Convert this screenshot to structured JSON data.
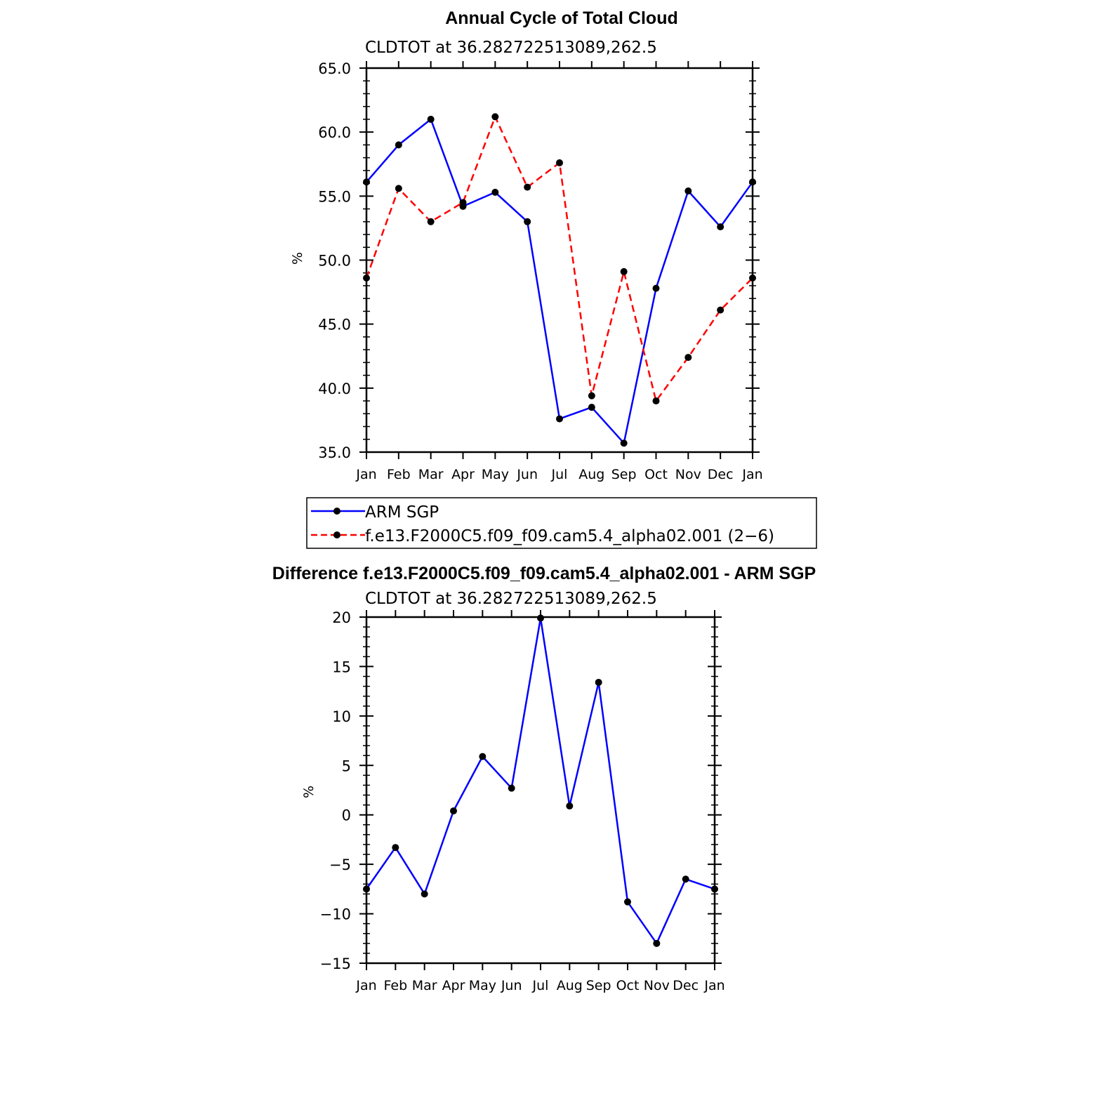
{
  "chart_data": [
    {
      "type": "line",
      "title": "Annual Cycle of Total Cloud",
      "subtitle": "CLDTOT at 36.282722513089,262.5",
      "xlabel": "",
      "ylabel": "%",
      "categories": [
        "Jan",
        "Feb",
        "Mar",
        "Apr",
        "May",
        "Jun",
        "Jul",
        "Aug",
        "Sep",
        "Oct",
        "Nov",
        "Dec",
        "Jan"
      ],
      "ylim": [
        35.0,
        65.0
      ],
      "yticks": [
        "35.0",
        "40.0",
        "45.0",
        "50.0",
        "55.0",
        "60.0",
        "65.0"
      ],
      "series": [
        {
          "name": "ARM SGP",
          "color": "#0000ff",
          "dash": "solid",
          "values": [
            56.1,
            59.0,
            61.0,
            54.2,
            55.3,
            53.0,
            37.6,
            38.5,
            35.7,
            47.8,
            55.4,
            52.6,
            56.1
          ]
        },
        {
          "name": "f.e13.F2000C5.f09_f09.cam5.4_alpha02.001 (2−6)",
          "color": "#ff0000",
          "dash": "dashed",
          "values": [
            48.6,
            55.6,
            53.0,
            54.5,
            61.2,
            55.7,
            57.6,
            39.4,
            49.1,
            39.0,
            42.4,
            46.1,
            48.6
          ]
        }
      ],
      "legend": "below"
    },
    {
      "type": "line",
      "title": "Difference f.e13.F2000C5.f09_f09.cam5.4_alpha02.001 - ARM SGP",
      "subtitle": "CLDTOT at 36.282722513089,262.5",
      "xlabel": "",
      "ylabel": "%",
      "categories": [
        "Jan",
        "Feb",
        "Mar",
        "Apr",
        "May",
        "Jun",
        "Jul",
        "Aug",
        "Sep",
        "Oct",
        "Nov",
        "Dec",
        "Jan"
      ],
      "ylim": [
        -15,
        20
      ],
      "yticks": [
        "−15",
        "−10",
        "−5",
        "0",
        "5",
        "10",
        "15",
        "20"
      ],
      "series": [
        {
          "name": "Difference",
          "color": "#0000ff",
          "dash": "solid",
          "values": [
            -7.5,
            -3.3,
            -8.0,
            0.4,
            5.9,
            2.7,
            19.9,
            0.9,
            13.4,
            -8.8,
            -13.0,
            -6.5,
            -7.5
          ]
        }
      ]
    }
  ]
}
